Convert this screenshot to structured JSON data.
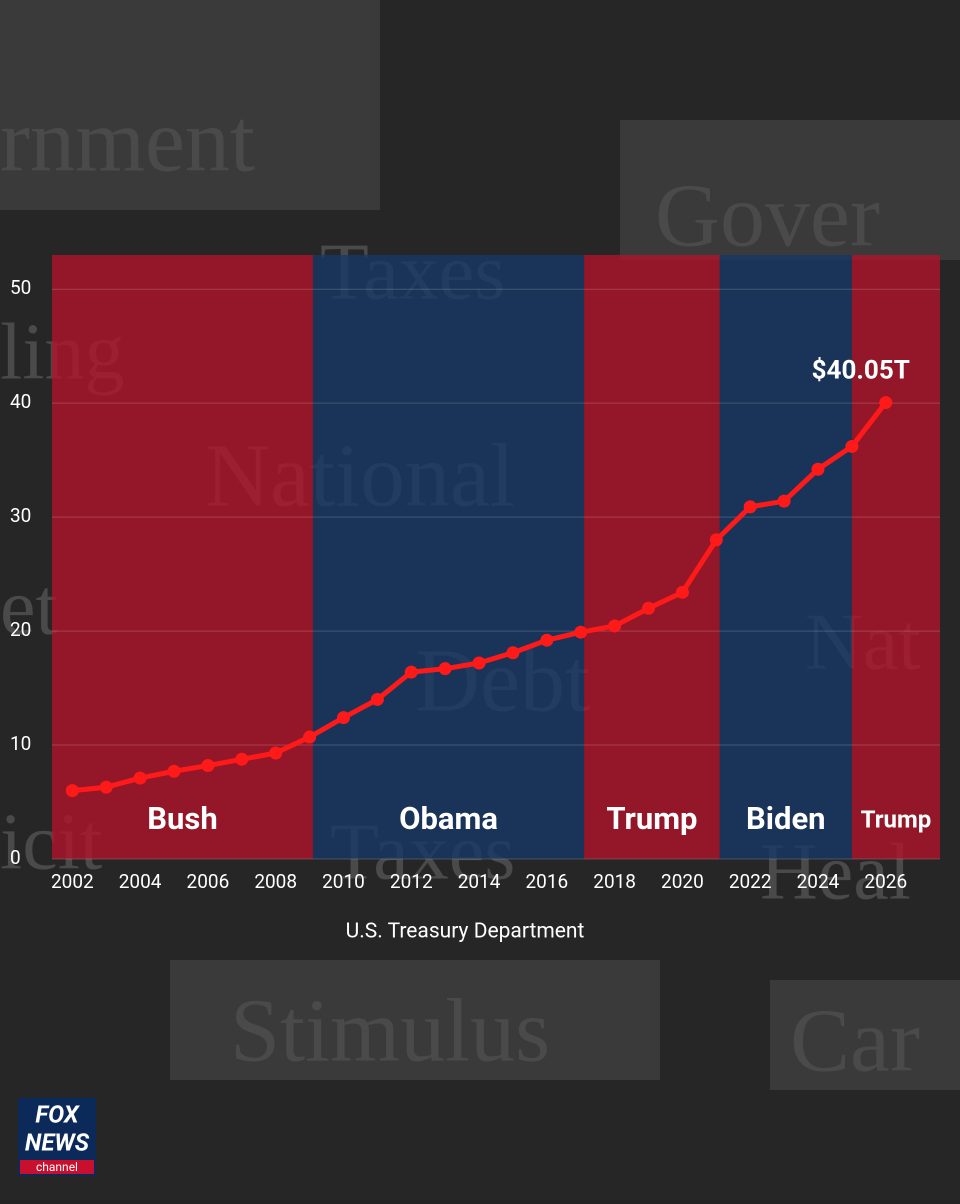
{
  "background_words": [
    "rnment",
    "Gover",
    "Taxes",
    "ling",
    "National",
    "et",
    "Debt",
    "Nat",
    "icit",
    "Taxes",
    "Heal",
    "Stimulus",
    "Car"
  ],
  "logo": {
    "top": "FOX",
    "middle": "NEWS",
    "bottom": "channel"
  },
  "chart_data": {
    "type": "line",
    "x": [
      2002,
      2003,
      2004,
      2005,
      2006,
      2007,
      2008,
      2009,
      2010,
      2011,
      2012,
      2013,
      2014,
      2015,
      2016,
      2017,
      2018,
      2019,
      2020,
      2021,
      2022,
      2023,
      2024,
      2025,
      2026
    ],
    "series": [
      {
        "color": "#ff1a1a",
        "values": [
          6.0,
          6.3,
          7.1,
          7.7,
          8.2,
          8.75,
          9.3,
          10.7,
          12.4,
          14.0,
          16.4,
          16.7,
          17.2,
          18.1,
          19.2,
          19.9,
          20.45,
          22.0,
          23.4,
          28.0,
          30.9,
          31.4,
          34.2,
          36.2,
          40.05
        ],
        "value_labels": [
          null,
          null,
          null,
          null,
          null,
          null,
          null,
          null,
          null,
          null,
          null,
          null,
          null,
          null,
          null,
          null,
          null,
          null,
          null,
          null,
          null,
          null,
          null,
          null,
          "$40.05T"
        ]
      }
    ],
    "periods": [
      {
        "label": "Bush",
        "start": 2001.4,
        "end": 2009.1,
        "color": "#b3122a"
      },
      {
        "label": "Obama",
        "start": 2009.1,
        "end": 2017.1,
        "color": "#163866"
      },
      {
        "label": "Trump",
        "start": 2017.1,
        "end": 2021.1,
        "color": "#b3122a"
      },
      {
        "label": "Biden",
        "start": 2021.1,
        "end": 2025.0,
        "color": "#163866"
      },
      {
        "label": "Trump",
        "start": 2025.0,
        "end": 2027.6,
        "color": "#b3122a"
      }
    ],
    "xlim": [
      2001.4,
      2027.6
    ],
    "ylim": [
      0,
      53
    ],
    "xticks": [
      2002,
      2004,
      2006,
      2008,
      2010,
      2012,
      2014,
      2016,
      2018,
      2020,
      2022,
      2024,
      2026
    ],
    "yticks": [
      0,
      10,
      20,
      30,
      40,
      50
    ],
    "grid": true,
    "source": "U.S. Treasury Department"
  }
}
